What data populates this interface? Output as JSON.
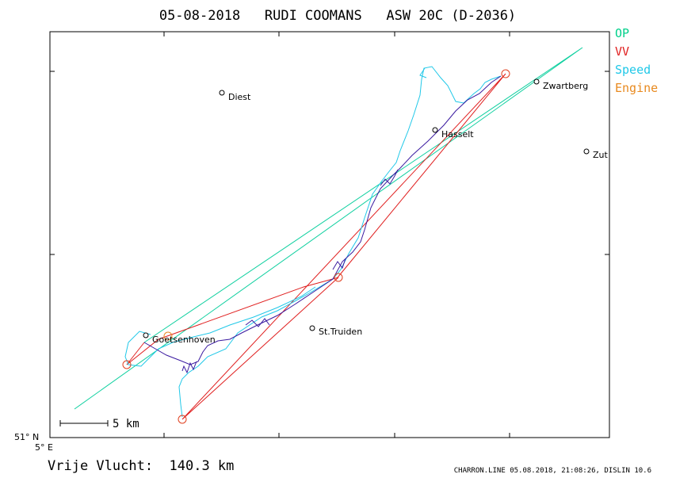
{
  "header": {
    "title": "05-08-2018   RUDI COOMANS   ASW 20C (D-2036)"
  },
  "legend": {
    "items": [
      {
        "label": "OP",
        "color": "#00d08a"
      },
      {
        "label": "VV",
        "color": "#e02020"
      },
      {
        "label": "Speed",
        "color": "#20c8e8"
      },
      {
        "label": "Engine",
        "color": "#e88a20"
      }
    ]
  },
  "places": [
    {
      "name": "Diest"
    },
    {
      "name": "Hasselt"
    },
    {
      "name": "Zwartberg"
    },
    {
      "name": "Zut"
    },
    {
      "name": "St.Truiden"
    },
    {
      "name": "Goetsenhoven"
    }
  ],
  "axes": {
    "lat_label": "51° N",
    "lon_label": "5° E"
  },
  "scale": {
    "label": "5 km"
  },
  "summary": {
    "distance": "Vrije Vlucht:  140.3 km"
  },
  "footer": {
    "text": "CHARRON.LINE 05.08.2018, 21:08:26, DISLIN 10.6"
  },
  "colors": {
    "op": "#00d08a",
    "vv": "#e02020",
    "speed": "#20c8e8",
    "track": "#3a1aa0",
    "engine": "#e88a20"
  }
}
